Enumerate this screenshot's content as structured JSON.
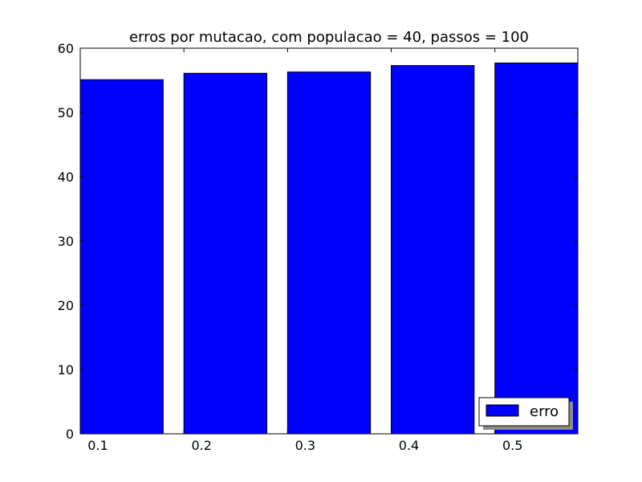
{
  "chart_data": {
    "type": "bar",
    "title": "erros por mutacao, com populacao = 40, passos = 100",
    "xlabel": "",
    "ylabel": "",
    "categories": [
      "0.1",
      "0.2",
      "0.3",
      "0.4",
      "0.5"
    ],
    "series": [
      {
        "name": "erro",
        "values": [
          55.1,
          56.1,
          56.3,
          57.3,
          57.7
        ]
      }
    ],
    "ylim": [
      0,
      60
    ],
    "yticks": [
      0,
      10,
      20,
      30,
      40,
      50,
      60
    ],
    "grid": false,
    "legend": "lower-right",
    "bar_color": "#0000ff",
    "edge_color": "#000000"
  }
}
